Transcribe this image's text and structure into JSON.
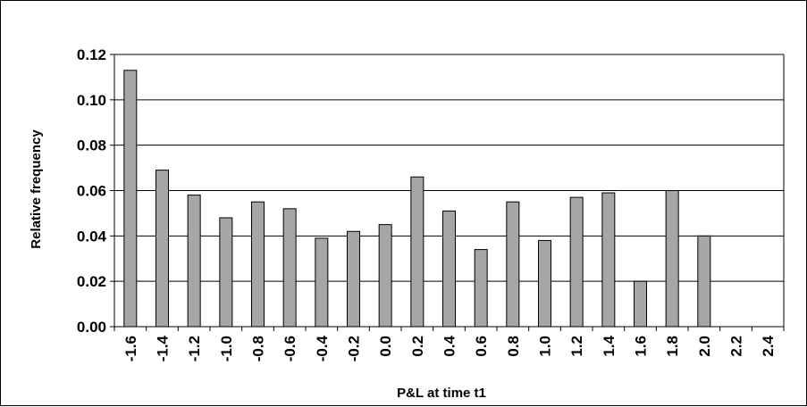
{
  "chart_data": {
    "type": "bar",
    "title": "",
    "xlabel": "P&L at time t1",
    "ylabel": "Relative frequency",
    "ylim": [
      0,
      0.12
    ],
    "yticks": [
      "0.00",
      "0.02",
      "0.04",
      "0.06",
      "0.08",
      "0.10",
      "0.12"
    ],
    "categories": [
      "-1.6",
      "-1.4",
      "-1.2",
      "-1.0",
      "-0.8",
      "-0.6",
      "-0.4",
      "-0.2",
      "0.0",
      "0.2",
      "0.4",
      "0.6",
      "0.8",
      "1.0",
      "1.2",
      "1.4",
      "1.6",
      "1.8",
      "2.0",
      "2.2",
      "2.4"
    ],
    "values": [
      0.113,
      0.069,
      0.058,
      0.048,
      0.055,
      0.052,
      0.039,
      0.042,
      0.045,
      0.066,
      0.051,
      0.034,
      0.055,
      0.038,
      0.057,
      0.059,
      0.02,
      0.06,
      0.04,
      0,
      0
    ],
    "grid": true,
    "colors": {
      "bar_fill": "#a6a6a6",
      "bar_stroke": "#000000",
      "grid": "#000000"
    }
  }
}
